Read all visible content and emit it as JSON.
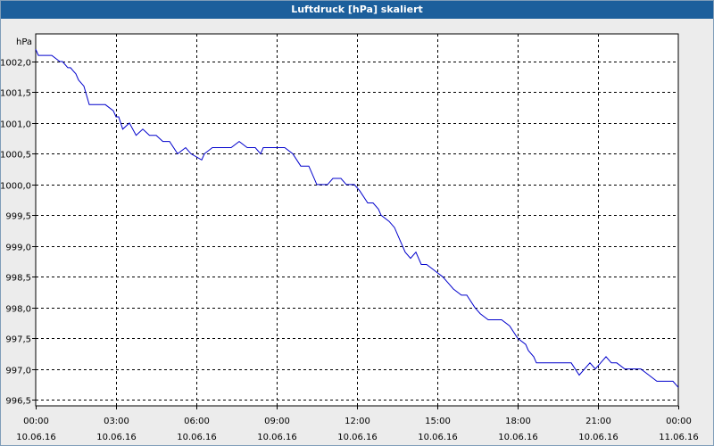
{
  "window": {
    "title": "Luftdruck [hPa] skaliert"
  },
  "chart_data": {
    "type": "line",
    "title": "Luftdruck [hPa] skaliert",
    "ylabel": "hPa",
    "ylim": [
      996.4,
      1002.45
    ],
    "xlim": [
      0,
      24
    ],
    "yticks": [
      "1002,0",
      "1001,5",
      "1001,0",
      "1000,5",
      "1000,0",
      "999,5",
      "999,0",
      "998,5",
      "998,0",
      "997,5",
      "997,0",
      "996,5"
    ],
    "ytick_values": [
      1002.0,
      1001.5,
      1001.0,
      1000.5,
      1000.0,
      999.5,
      999.0,
      998.5,
      998.0,
      997.5,
      997.0,
      996.5
    ],
    "xticks": [
      {
        "time": "00:00",
        "date": "10.06.16"
      },
      {
        "time": "03:00",
        "date": "10.06.16"
      },
      {
        "time": "06:00",
        "date": "10.06.16"
      },
      {
        "time": "09:00",
        "date": "10.06.16"
      },
      {
        "time": "12:00",
        "date": "10.06.16"
      },
      {
        "time": "15:00",
        "date": "10.06.16"
      },
      {
        "time": "18:00",
        "date": "10.06.16"
      },
      {
        "time": "21:00",
        "date": "10.06.16"
      },
      {
        "time": "00:00",
        "date": "11.06.16"
      }
    ],
    "grid": true,
    "line_color": "#0000cc",
    "series": [
      {
        "x": [
          0,
          0.1,
          0.3,
          0.6,
          0.9,
          1.0,
          1.2,
          1.3,
          1.4,
          1.5,
          1.6,
          1.8,
          2.0,
          2.2,
          2.4,
          2.6,
          2.9,
          3.0,
          3.1,
          3.25,
          3.5,
          3.75,
          4.0,
          4.25,
          4.5,
          4.75,
          5.0,
          5.3,
          5.6,
          5.8,
          6.2,
          6.3,
          6.6,
          6.9,
          7.1,
          7.3,
          7.6,
          7.9,
          8.2,
          8.4,
          8.5,
          8.7,
          9.0,
          9.1,
          9.3,
          9.6,
          9.9,
          10.2,
          10.5,
          10.7,
          10.9,
          11.1,
          11.4,
          11.6,
          11.9,
          12.1,
          12.4,
          12.6,
          12.8,
          12.9,
          13.2,
          13.4,
          13.6,
          13.8,
          14.0,
          14.2,
          14.4,
          14.6,
          14.9,
          15.2,
          15.4,
          15.6,
          15.9,
          16.1,
          16.4,
          16.6,
          16.9,
          17.2,
          17.4,
          17.7,
          18.0,
          18.3,
          18.4,
          18.6,
          18.7,
          18.9,
          19.1,
          19.4,
          19.7,
          20.0,
          20.3,
          20.5,
          20.7,
          20.9,
          21.1,
          21.3,
          21.5,
          21.7,
          22.0,
          22.3,
          22.6,
          22.9,
          23.2,
          23.5,
          23.8,
          24.0
        ],
        "y": [
          1002.2,
          1002.1,
          1002.1,
          1002.1,
          1002.0,
          1002.0,
          1001.9,
          1001.9,
          1001.85,
          1001.8,
          1001.7,
          1001.6,
          1001.3,
          1001.3,
          1001.3,
          1001.3,
          1001.2,
          1001.1,
          1001.1,
          1000.9,
          1001.0,
          1000.8,
          1000.9,
          1000.8,
          1000.8,
          1000.7,
          1000.7,
          1000.5,
          1000.6,
          1000.5,
          1000.4,
          1000.5,
          1000.6,
          1000.6,
          1000.6,
          1000.6,
          1000.7,
          1000.6,
          1000.6,
          1000.5,
          1000.6,
          1000.6,
          1000.6,
          1000.6,
          1000.6,
          1000.5,
          1000.3,
          1000.3,
          1000.0,
          1000.0,
          1000.0,
          1000.1,
          1000.1,
          1000.0,
          1000.0,
          999.9,
          999.7,
          999.7,
          999.6,
          999.5,
          999.4,
          999.3,
          999.1,
          998.9,
          998.8,
          998.9,
          998.7,
          998.7,
          998.6,
          998.5,
          998.4,
          998.3,
          998.2,
          998.2,
          998.0,
          997.9,
          997.8,
          997.8,
          997.8,
          997.7,
          997.5,
          997.4,
          997.3,
          997.2,
          997.1,
          997.1,
          997.1,
          997.1,
          997.1,
          997.1,
          996.9,
          997.0,
          997.1,
          997.0,
          997.1,
          997.2,
          997.1,
          997.1,
          997.0,
          997.0,
          997.0,
          996.9,
          996.8,
          996.8,
          996.8,
          996.7
        ]
      }
    ]
  }
}
